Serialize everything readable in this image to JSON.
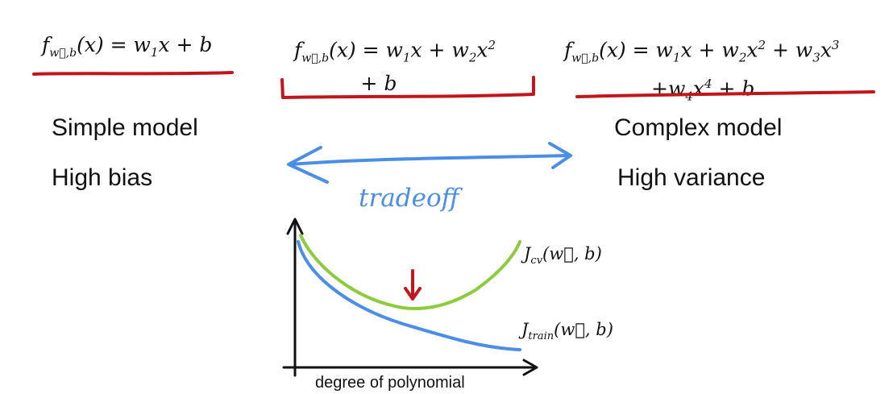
{
  "models": [
    {
      "formula_lines": [
        "f⃗w,b(x) = w₁x + b"
      ],
      "underline_style": "stroke"
    },
    {
      "formula_lines": [
        "f⃗w,b(x) = w₁x + w₂x²",
        "+ b"
      ],
      "underline_style": "bracket"
    },
    {
      "formula_lines": [
        "f⃗w,b(x) = w₁x + w₂x² + w₃x³",
        "+w₄x⁴ + b"
      ],
      "underline_style": "stroke"
    }
  ],
  "left_labels": {
    "line1": "Simple model",
    "line2": "High bias"
  },
  "right_labels": {
    "line1": "Complex model",
    "line2": "High variance"
  },
  "tradeoff_label": "tradeoff",
  "graph": {
    "x_axis_label": "degree of polynomial",
    "cv_label": "J_cv(w⃗, b)",
    "train_label": "J_train(w⃗, b)"
  },
  "colors": {
    "underline": "#c0161c",
    "arrow": "#4a8ee8",
    "tradeoff_text": "#4a8ee8",
    "cv_curve": "#8ccc3c",
    "train_curve": "#4a8ee8",
    "marker_arrow": "#c0161c",
    "axis": "#111111"
  },
  "chart_data": {
    "type": "line",
    "xlabel": "degree of polynomial",
    "ylabel": "",
    "series": [
      {
        "name": "J_cv(w⃗, b)",
        "shape": "U-shaped, minimum at intermediate degree"
      },
      {
        "name": "J_train(w⃗, b)",
        "shape": "monotonically decreasing"
      }
    ],
    "annotations": [
      "red down-arrow marking minimum of J_cv"
    ]
  }
}
